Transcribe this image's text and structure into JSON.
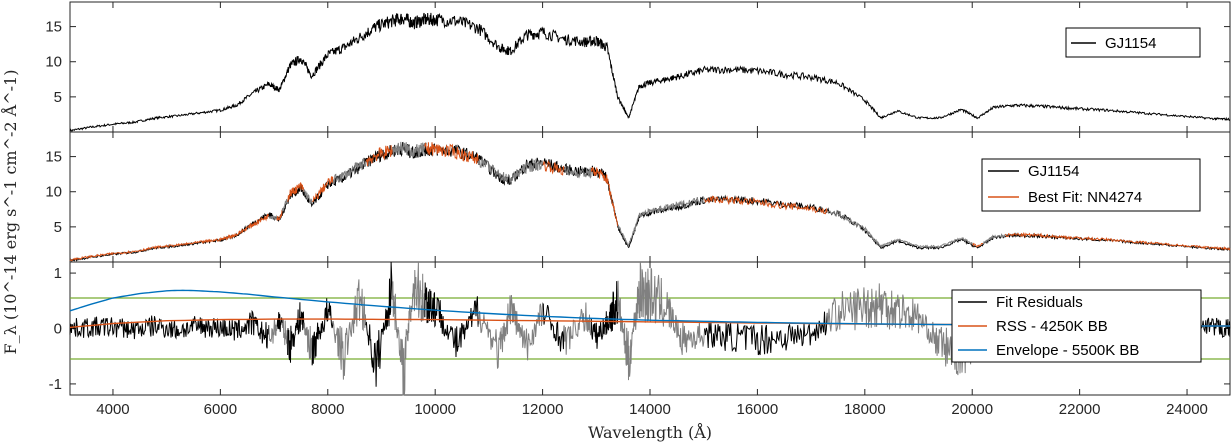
{
  "colors": {
    "observed": "#000000",
    "masked": "#808080",
    "best_fit": "#D95319",
    "rss_bb": "#D95319",
    "envelope_bb": "#0072BD",
    "threshold": "#77AC30"
  },
  "figure": {
    "xlabel": "Wavelength (Å)",
    "ylabel": "F_λ (10^-14 erg s^-1 cm^-2 Å^-1)",
    "x_ticks": [
      "4000",
      "6000",
      "8000",
      "10000",
      "12000",
      "14000",
      "16000",
      "18000",
      "20000",
      "22000",
      "24000"
    ]
  },
  "chart_data": [
    {
      "type": "line",
      "panel": "top",
      "xlim": [
        3200,
        24800
      ],
      "ylim": [
        0,
        18.5
      ],
      "y_ticks": [
        "5",
        "10",
        "15"
      ],
      "legend": {
        "placement": "top-right",
        "entries": [
          "GJ1154"
        ]
      },
      "series": [
        {
          "name": "GJ1154",
          "x": [
            3200,
            3600,
            4000,
            4400,
            4800,
            5200,
            5600,
            6000,
            6300,
            6600,
            6900,
            7100,
            7300,
            7500,
            7700,
            8000,
            8300,
            8600,
            8900,
            9200,
            9400,
            9600,
            9800,
            10000,
            10400,
            10800,
            11200,
            11400,
            11700,
            12000,
            12400,
            12800,
            13000,
            13200,
            13400,
            13600,
            13800,
            14000,
            14300,
            14600,
            15000,
            15500,
            16000,
            16500,
            17000,
            17500,
            18000,
            18300,
            18600,
            19000,
            19400,
            19800,
            20100,
            20400,
            20800,
            21200,
            21600,
            22000,
            22500,
            23000,
            23500,
            24000,
            24500,
            24800
          ],
          "y": [
            0.2,
            0.7,
            1.1,
            1.4,
            2.0,
            2.3,
            2.7,
            3.1,
            3.8,
            5.5,
            6.8,
            6.0,
            9.5,
            10.5,
            8.0,
            11.0,
            12.0,
            13.5,
            15.0,
            15.8,
            16.2,
            15.5,
            16.0,
            16.0,
            15.8,
            14.8,
            12.0,
            11.5,
            13.8,
            14.2,
            13.2,
            12.8,
            13.0,
            12.0,
            5.0,
            2.0,
            6.5,
            7.0,
            7.5,
            8.0,
            8.8,
            8.9,
            8.7,
            8.2,
            7.8,
            7.0,
            4.5,
            2.0,
            3.0,
            2.0,
            2.0,
            3.2,
            2.0,
            3.5,
            3.8,
            3.7,
            3.5,
            3.3,
            3.1,
            2.8,
            2.5,
            2.2,
            1.9,
            1.8
          ]
        }
      ]
    },
    {
      "type": "line",
      "panel": "middle",
      "xlim": [
        3200,
        24800
      ],
      "ylim": [
        0,
        18.5
      ],
      "y_ticks": [
        "5",
        "10",
        "15"
      ],
      "legend": {
        "placement": "top-right",
        "entries": [
          "GJ1154",
          "Best Fit: NN4274"
        ]
      },
      "series": [
        {
          "name": "GJ1154",
          "x": [
            3200,
            3600,
            4000,
            4400,
            4800,
            5200,
            5600,
            6000,
            6300,
            6600,
            6900,
            7100,
            7300,
            7500,
            7700,
            8000,
            8300,
            8600,
            8900,
            9200,
            9400,
            9600,
            9800,
            10000,
            10400,
            10800,
            11200,
            11400,
            11700,
            12000,
            12400,
            12800,
            13000,
            13200,
            13400,
            13600,
            13800,
            14000,
            14300,
            14600,
            15000,
            15500,
            16000,
            16500,
            17000,
            17500,
            18000,
            18300,
            18600,
            19000,
            19400,
            19800,
            20100,
            20400,
            20800,
            21200,
            21600,
            22000,
            22500,
            23000,
            23500,
            24000,
            24500,
            24800
          ],
          "y": [
            0.2,
            0.7,
            1.1,
            1.4,
            2.0,
            2.3,
            2.7,
            3.1,
            3.8,
            5.5,
            6.8,
            6.0,
            9.5,
            10.5,
            8.0,
            11.0,
            12.0,
            13.5,
            15.0,
            15.8,
            16.2,
            15.5,
            16.0,
            16.0,
            15.8,
            14.8,
            12.0,
            11.5,
            13.8,
            14.2,
            13.2,
            12.8,
            13.0,
            12.0,
            5.0,
            2.0,
            6.5,
            7.0,
            7.5,
            8.0,
            8.8,
            8.9,
            8.7,
            8.2,
            7.8,
            7.0,
            4.5,
            2.0,
            3.0,
            2.0,
            2.0,
            3.2,
            2.0,
            3.5,
            3.8,
            3.7,
            3.5,
            3.3,
            3.1,
            2.8,
            2.5,
            2.2,
            1.9,
            1.8
          ]
        },
        {
          "name": "Best Fit: NN4274",
          "x": [
            3200,
            3600,
            4000,
            4400,
            4800,
            5200,
            5600,
            6000,
            6300,
            6600,
            6900,
            7100,
            7300,
            7500,
            7700,
            8000,
            8300,
            8600,
            8900,
            9200,
            9400,
            9600,
            9800,
            10000,
            10400,
            10800,
            11200,
            11400,
            11700,
            12000,
            12400,
            12800,
            13000,
            13200,
            13400,
            13600,
            13800,
            14000,
            14300,
            14600,
            15000,
            15500,
            16000,
            16500,
            17000,
            17500,
            18000,
            18300,
            18600,
            19000,
            19400,
            19800,
            20100,
            20400,
            20800,
            21200,
            21600,
            22000,
            22500,
            23000,
            23500,
            24000,
            24500,
            24800
          ],
          "y": [
            0.3,
            0.8,
            1.2,
            1.5,
            2.1,
            2.4,
            2.8,
            3.2,
            3.9,
            5.3,
            6.6,
            6.2,
            9.8,
            10.8,
            8.4,
            11.3,
            12.3,
            13.7,
            15.2,
            15.9,
            16.3,
            15.7,
            16.1,
            16.1,
            15.6,
            14.6,
            12.3,
            11.8,
            13.5,
            13.9,
            13.0,
            12.6,
            12.9,
            11.8,
            5.3,
            2.3,
            6.7,
            7.2,
            7.7,
            8.2,
            9.0,
            8.8,
            8.5,
            8.0,
            7.6,
            6.8,
            4.7,
            2.2,
            3.2,
            2.2,
            2.2,
            3.4,
            2.2,
            3.6,
            3.9,
            3.8,
            3.6,
            3.4,
            3.2,
            2.9,
            2.6,
            2.3,
            2.0,
            1.9
          ]
        }
      ],
      "masked_ranges": [
        [
          6900,
          7050
        ],
        [
          7150,
          7250
        ],
        [
          7550,
          7700
        ],
        [
          8100,
          8700
        ],
        [
          9200,
          9800
        ],
        [
          10800,
          12000
        ],
        [
          12400,
          12900
        ],
        [
          13400,
          15000
        ],
        [
          17300,
          20000
        ],
        [
          20200,
          20600
        ]
      ]
    },
    {
      "type": "line",
      "panel": "bottom",
      "xlim": [
        3200,
        24800
      ],
      "ylim": [
        -1.2,
        1.2
      ],
      "y_ticks": [
        "-1",
        "0",
        "1"
      ],
      "legend": {
        "placement": "right",
        "entries": [
          "Fit Residuals",
          "RSS - 4250K BB",
          "Envelope - 5500K BB"
        ]
      },
      "thresholds": [
        0.55,
        -0.55
      ],
      "series": [
        {
          "name": "Fit Residuals",
          "x": [
            3200,
            3600,
            4000,
            4400,
            4800,
            5200,
            5600,
            6000,
            6300,
            6600,
            6900,
            7100,
            7300,
            7500,
            7700,
            8000,
            8300,
            8600,
            8900,
            9200,
            9400,
            9600,
            9800,
            10000,
            10400,
            10800,
            11200,
            11400,
            11700,
            12000,
            12400,
            12800,
            13000,
            13200,
            13400,
            13600,
            13800,
            14000,
            14300,
            14600,
            15000,
            15500,
            16000,
            16500,
            17000,
            17500,
            18000,
            18300,
            18600,
            19000,
            19400,
            19800,
            20100,
            20400,
            20800,
            21200,
            21600,
            22000,
            22500,
            23000,
            23500,
            24000,
            24500,
            24800
          ],
          "y": [
            0.0,
            0.02,
            0.03,
            -0.02,
            0.05,
            -0.03,
            0.04,
            0.02,
            -0.05,
            0.1,
            -0.2,
            0.15,
            -0.3,
            0.25,
            -0.4,
            0.3,
            -0.5,
            0.6,
            -0.7,
            0.8,
            -0.9,
            0.85,
            0.5,
            0.4,
            -0.3,
            0.35,
            -0.45,
            0.4,
            -0.35,
            0.3,
            -0.25,
            0.2,
            -0.15,
            0.1,
            0.5,
            -0.6,
            0.7,
            0.6,
            0.4,
            -0.2,
            -0.1,
            -0.15,
            -0.2,
            -0.15,
            -0.1,
            0.3,
            0.4,
            0.45,
            0.35,
            0.2,
            -0.3,
            -0.45,
            -0.2,
            -0.1,
            -0.05,
            0.02,
            -0.03,
            0.01,
            0.0,
            0.02,
            -0.02,
            0.0,
            0.01,
            0.0
          ]
        },
        {
          "name": "RSS - 4250K BB",
          "x": [
            3200,
            4000,
            5000,
            6000,
            7000,
            8000,
            9000,
            10000,
            12000,
            14000,
            16000,
            18000,
            20000,
            22000,
            24000,
            24800
          ],
          "y": [
            0.02,
            0.09,
            0.14,
            0.16,
            0.17,
            0.17,
            0.165,
            0.16,
            0.14,
            0.12,
            0.1,
            0.08,
            0.07,
            0.06,
            0.05,
            0.045
          ]
        },
        {
          "name": "Envelope - 5500K BB",
          "x": [
            3200,
            3600,
            4000,
            4500,
            5000,
            5300,
            5600,
            6000,
            6500,
            7000,
            8000,
            9000,
            10000,
            11000,
            12000,
            13000,
            14000,
            15000,
            16000,
            17000,
            18000,
            19000,
            20000,
            21000,
            22000,
            23000,
            24000,
            24800
          ],
          "y": [
            0.32,
            0.44,
            0.55,
            0.63,
            0.68,
            0.69,
            0.68,
            0.66,
            0.62,
            0.57,
            0.48,
            0.4,
            0.33,
            0.27,
            0.22,
            0.18,
            0.15,
            0.13,
            0.11,
            0.095,
            0.085,
            0.075,
            0.067,
            0.06,
            0.055,
            0.05,
            0.047,
            0.045
          ]
        }
      ],
      "masked_ranges": [
        [
          6900,
          7050
        ],
        [
          7150,
          7250
        ],
        [
          7550,
          7700
        ],
        [
          8100,
          8700
        ],
        [
          9200,
          9800
        ],
        [
          10800,
          12000
        ],
        [
          12400,
          12900
        ],
        [
          13400,
          15000
        ],
        [
          17300,
          20000
        ],
        [
          20200,
          20600
        ]
      ]
    }
  ]
}
